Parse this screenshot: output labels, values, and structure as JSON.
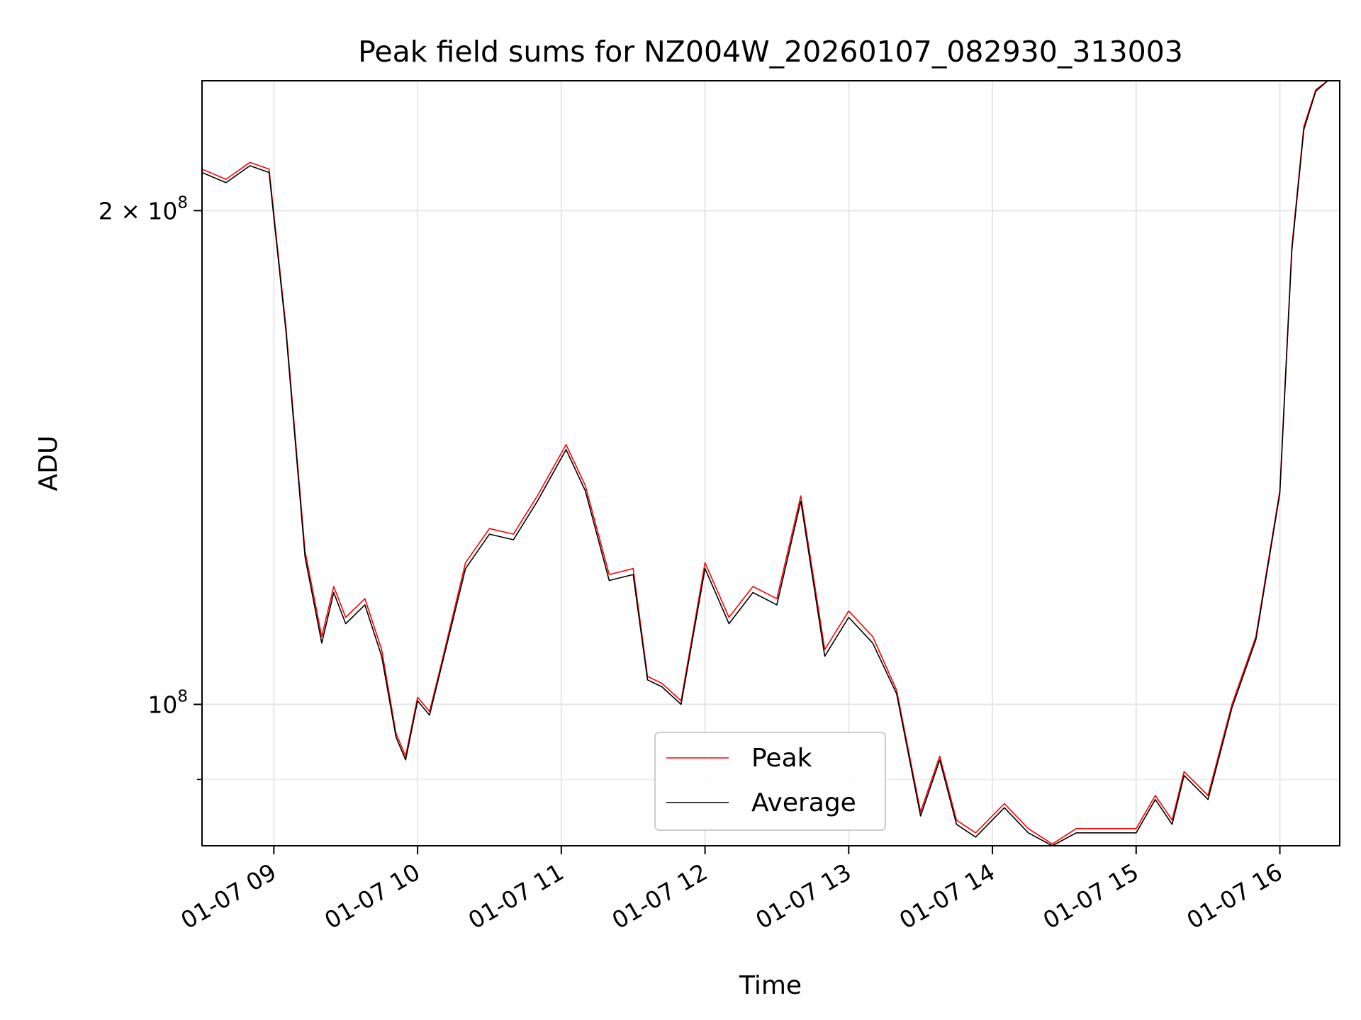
{
  "chart_data": {
    "type": "line",
    "title": "Peak field sums for NZ004W_20260107_082930_313003",
    "xlabel": "Time",
    "ylabel": "ADU",
    "x_scale": "time",
    "y_scale": "log",
    "xlim": [
      "2026-01-07 08:30",
      "2026-01-07 16:25"
    ],
    "ylim": [
      82000000,
      240000000
    ],
    "grid": true,
    "legend": "lower-center",
    "x_ticks": [
      {
        "value": "2026-01-07 09:00",
        "label": "01-07 09"
      },
      {
        "value": "2026-01-07 10:00",
        "label": "01-07 10"
      },
      {
        "value": "2026-01-07 11:00",
        "label": "01-07 11"
      },
      {
        "value": "2026-01-07 12:00",
        "label": "01-07 12"
      },
      {
        "value": "2026-01-07 13:00",
        "label": "01-07 13"
      },
      {
        "value": "2026-01-07 14:00",
        "label": "01-07 14"
      },
      {
        "value": "2026-01-07 15:00",
        "label": "01-07 15"
      },
      {
        "value": "2026-01-07 16:00",
        "label": "01-07 16"
      }
    ],
    "y_ticks": [
      {
        "value": 100000000,
        "base": "10",
        "exp": "8",
        "mantissa": ""
      },
      {
        "value": 200000000,
        "base": "10",
        "exp": "8",
        "mantissa": "2"
      }
    ],
    "y_minor_ticks": [
      90000000
    ],
    "x": [
      "2026-01-07 08:30",
      "2026-01-07 08:40",
      "2026-01-07 08:50",
      "2026-01-07 08:58",
      "2026-01-07 09:05",
      "2026-01-07 09:13",
      "2026-01-07 09:20",
      "2026-01-07 09:25",
      "2026-01-07 09:30",
      "2026-01-07 09:38",
      "2026-01-07 09:45",
      "2026-01-07 09:51",
      "2026-01-07 09:55",
      "2026-01-07 10:00",
      "2026-01-07 10:05",
      "2026-01-07 10:10",
      "2026-01-07 10:20",
      "2026-01-07 10:30",
      "2026-01-07 10:40",
      "2026-01-07 10:50",
      "2026-01-07 11:02",
      "2026-01-07 11:10",
      "2026-01-07 11:20",
      "2026-01-07 11:30",
      "2026-01-07 11:36",
      "2026-01-07 11:42",
      "2026-01-07 11:50",
      "2026-01-07 12:00",
      "2026-01-07 12:10",
      "2026-01-07 12:20",
      "2026-01-07 12:30",
      "2026-01-07 12:40",
      "2026-01-07 12:50",
      "2026-01-07 13:00",
      "2026-01-07 13:10",
      "2026-01-07 13:20",
      "2026-01-07 13:30",
      "2026-01-07 13:38",
      "2026-01-07 13:45",
      "2026-01-07 13:53",
      "2026-01-07 14:05",
      "2026-01-07 14:15",
      "2026-01-07 14:25",
      "2026-01-07 14:35",
      "2026-01-07 14:45",
      "2026-01-07 15:00",
      "2026-01-07 15:08",
      "2026-01-07 15:15",
      "2026-01-07 15:20",
      "2026-01-07 15:30",
      "2026-01-07 15:40",
      "2026-01-07 15:50",
      "2026-01-07 16:00",
      "2026-01-07 16:05",
      "2026-01-07 16:10",
      "2026-01-07 16:15",
      "2026-01-07 16:20",
      "2026-01-07 16:25"
    ],
    "series": [
      {
        "name": "Peak",
        "color": "#ff0000",
        "values": [
          212000000,
          209000000,
          214000000,
          212000000,
          170000000,
          124000000,
          110000000,
          118000000,
          113000000,
          116000000,
          108000000,
          96000000,
          93000000,
          101000000,
          99000000,
          106000000,
          122000000,
          128000000,
          127000000,
          134000000,
          144000000,
          136000000,
          120000000,
          121000000,
          104000000,
          103000000,
          100500000,
          122000000,
          113000000,
          118000000,
          116000000,
          134000000,
          108000000,
          114000000,
          110000000,
          102000000,
          86000000,
          93000000,
          85000000,
          83500000,
          87000000,
          84000000,
          82200000,
          84000000,
          84000000,
          84000000,
          88000000,
          85000000,
          91000000,
          88000000,
          100000000,
          110000000,
          135000000,
          190000000,
          225000000,
          237000000,
          240000000,
          240000000
        ]
      },
      {
        "name": "Average",
        "color": "#000000",
        "values": [
          211000000,
          208000000,
          213000000,
          211000000,
          169000000,
          123000000,
          109000000,
          117000000,
          112000000,
          115000000,
          107000000,
          95500000,
          92500000,
          100500000,
          98500000,
          105500000,
          121000000,
          127000000,
          126000000,
          133000000,
          143000000,
          135000000,
          119000000,
          120000000,
          103500000,
          102500000,
          100000000,
          121000000,
          112000000,
          117000000,
          115000000,
          133000000,
          107000000,
          113000000,
          109000000,
          101500000,
          85500000,
          92500000,
          84500000,
          83000000,
          86500000,
          83500000,
          81800000,
          83500000,
          83500000,
          83500000,
          87500000,
          84500000,
          90500000,
          87500000,
          99500000,
          109500000,
          134500000,
          189000000,
          224000000,
          236500000,
          240000000,
          240000000
        ]
      }
    ]
  }
}
